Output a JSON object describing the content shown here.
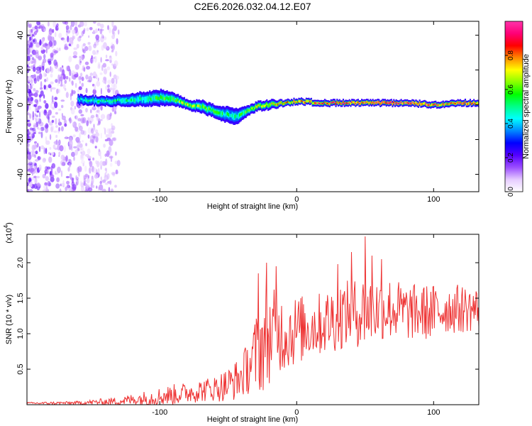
{
  "title": "C2E6.2026.032.04.12.E07",
  "chart_data": [
    {
      "type": "heatmap",
      "name": "spectrogram",
      "xlabel": "Height of straight line (km)",
      "ylabel": "Frequency (Hz)",
      "xlim": [
        -197,
        133
      ],
      "ylim": [
        -50,
        48
      ],
      "x_ticks": [
        -100,
        0,
        100
      ],
      "y_ticks": [
        -40,
        -20,
        0,
        20,
        40
      ],
      "colorbar": {
        "label": "Normalized spectral amplitude",
        "range": [
          0,
          1
        ],
        "ticks": [
          0.0,
          0.2,
          0.4,
          0.6,
          0.8
        ],
        "colors": [
          "#ffffff",
          "#e6ccff",
          "#9b4dff",
          "#5500ff",
          "#0000ff",
          "#0088ff",
          "#00ffff",
          "#00ff88",
          "#00ff00",
          "#88ff00",
          "#ffff00",
          "#ff8800",
          "#ff0000",
          "#ff0077",
          "#ff33aa"
        ]
      },
      "noise_region_x": [
        -197,
        -130
      ],
      "ridge": {
        "x": [
          -160,
          -140,
          -120,
          -100,
          -90,
          -80,
          -70,
          -60,
          -50,
          -45,
          -40,
          -35,
          -30,
          -20,
          -10,
          0,
          20,
          40,
          60,
          80,
          100,
          120,
          133
        ],
        "freq": [
          3,
          2,
          3,
          4,
          3,
          0,
          -1,
          -4,
          -6,
          -7,
          -5,
          -3,
          -1,
          0,
          1,
          2,
          1,
          1,
          1,
          1,
          0,
          1,
          1
        ],
        "width": [
          3,
          3,
          4,
          5,
          4,
          3,
          4,
          4,
          5,
          5,
          4,
          3,
          3,
          3,
          2,
          2,
          2,
          2,
          2,
          2,
          2,
          2,
          2
        ],
        "amplitude": [
          0.45,
          0.5,
          0.5,
          0.55,
          0.6,
          0.7,
          0.6,
          0.55,
          0.5,
          0.5,
          0.55,
          0.6,
          0.65,
          0.7,
          0.75,
          0.8,
          0.85,
          0.9,
          0.9,
          0.9,
          0.85,
          0.85,
          0.8
        ]
      }
    },
    {
      "type": "line",
      "name": "snr",
      "xlabel": "Height of straight line (km)",
      "ylabel": "SNR (10 * v/v)",
      "y_multiplier_label": "(x10",
      "y_multiplier_exp": "4",
      "y_multiplier_close": ")",
      "xlim": [
        -197,
        133
      ],
      "ylim": [
        0,
        24000
      ],
      "x_ticks": [
        -100,
        0,
        100
      ],
      "y_ticks": [
        5000,
        10000,
        15000,
        20000
      ],
      "y_tick_labels": [
        "0.5",
        "1.0",
        "1.5",
        "2.0"
      ],
      "color": "#ee3333",
      "envelope": {
        "x": [
          -197,
          -160,
          -130,
          -110,
          -90,
          -80,
          -60,
          -50,
          -40,
          -35,
          -30,
          -25,
          -20,
          -15,
          -10,
          0,
          10,
          20,
          30,
          40,
          50,
          60,
          70,
          80,
          90,
          100,
          110,
          120,
          133
        ],
        "mean": [
          200,
          250,
          500,
          900,
          1400,
          1700,
          2300,
          2800,
          4000,
          5500,
          7000,
          8500,
          9500,
          10500,
          10000,
          10500,
          11000,
          11500,
          12500,
          13000,
          13000,
          13500,
          13500,
          13000,
          13000,
          13000,
          13500,
          13500,
          13500
        ],
        "spread": [
          150,
          250,
          600,
          1100,
          1500,
          1500,
          1800,
          2500,
          3000,
          4000,
          5500,
          7000,
          6500,
          6000,
          5500,
          5000,
          4500,
          4500,
          5000,
          4500,
          5500,
          4500,
          4500,
          4000,
          4000,
          4000,
          3500,
          3500,
          3000
        ]
      },
      "peak_samples": [
        [
          50,
          23700
        ],
        [
          -15,
          19500
        ],
        [
          40,
          21500
        ],
        [
          55,
          21000
        ],
        [
          -28,
          18500
        ],
        [
          -22,
          20000
        ],
        [
          30,
          19800
        ],
        [
          62,
          20500
        ]
      ]
    }
  ]
}
